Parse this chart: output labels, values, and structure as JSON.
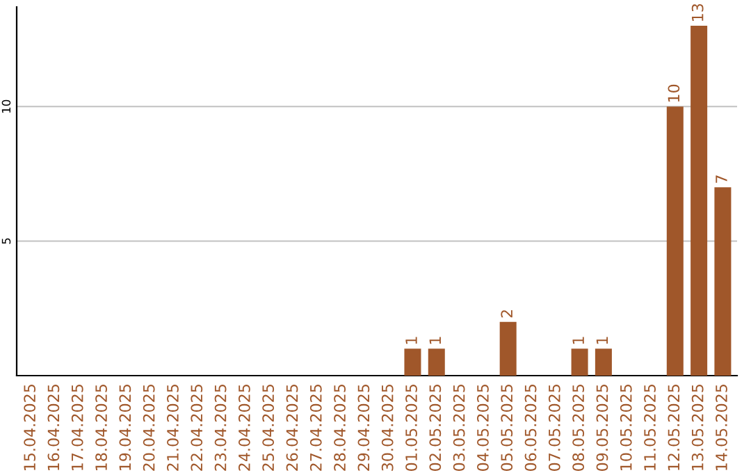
{
  "chart_data": {
    "type": "bar",
    "categories": [
      "15.04.2025",
      "16.04.2025",
      "17.04.2025",
      "18.04.2025",
      "19.04.2025",
      "20.04.2025",
      "21.04.2025",
      "22.04.2025",
      "23.04.2025",
      "24.04.2025",
      "25.04.2025",
      "26.04.2025",
      "27.04.2025",
      "28.04.2025",
      "29.04.2025",
      "30.04.2025",
      "01.05.2025",
      "02.05.2025",
      "03.05.2025",
      "04.05.2025",
      "05.05.2025",
      "06.05.2025",
      "07.05.2025",
      "08.05.2025",
      "09.05.2025",
      "10.05.2025",
      "11.05.2025",
      "12.05.2025",
      "13.05.2025",
      "14.05.2025"
    ],
    "values": [
      0,
      0,
      0,
      0,
      0,
      0,
      0,
      0,
      0,
      0,
      0,
      0,
      0,
      0,
      0,
      0,
      1,
      1,
      0,
      0,
      2,
      0,
      0,
      1,
      1,
      0,
      0,
      10,
      13,
      7
    ],
    "value_labels": [
      null,
      null,
      null,
      null,
      null,
      null,
      null,
      null,
      null,
      null,
      null,
      null,
      null,
      null,
      null,
      null,
      "1",
      "1",
      null,
      null,
      "2",
      null,
      null,
      "1",
      "1",
      null,
      null,
      "10",
      "13",
      "7"
    ],
    "color": "#a0572a",
    "ylim": [
      0,
      13.7
    ],
    "yticks": [
      5,
      10
    ],
    "grid": "y"
  }
}
